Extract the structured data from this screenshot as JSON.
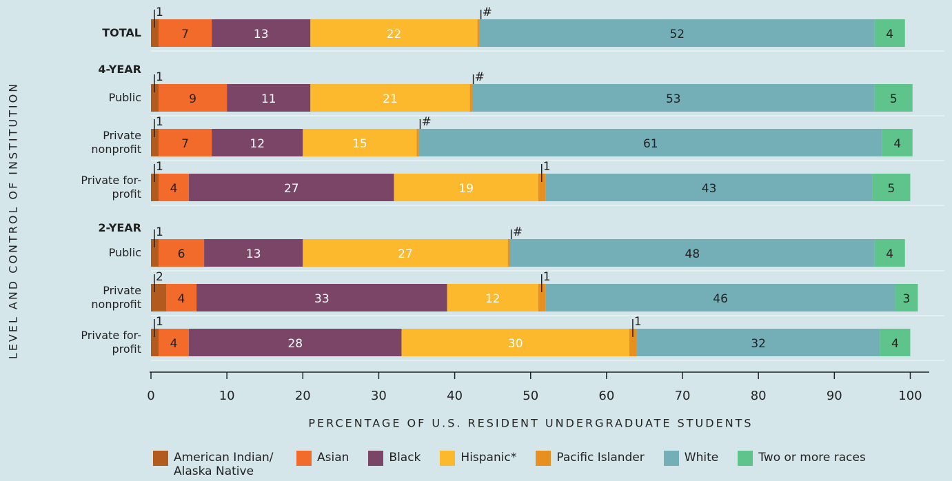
{
  "chart_data": {
    "type": "stacked_bar_horizontal",
    "y_axis_label": "LEVEL AND CONTROL OF INSTITUTION",
    "x_axis_label": "PERCENTAGE OF U.S. RESIDENT UNDERGRADUATE STUDENTS",
    "group_labels": [
      "4-YEAR",
      "2-YEAR"
    ],
    "categories": [
      "TOTAL",
      "Public",
      "Private nonprofit",
      "Private for-profit",
      "Public",
      "Private nonprofit",
      "Private for-profit"
    ],
    "series": [
      {
        "name": "American Indian/ Alaska Native",
        "color": "#b35a1f",
        "values": [
          1,
          1,
          1,
          1,
          1,
          2,
          1
        ]
      },
      {
        "name": "Asian",
        "color": "#f26b2a",
        "values": [
          7,
          9,
          7,
          4,
          6,
          4,
          4
        ]
      },
      {
        "name": "Black",
        "color": "#7a4566",
        "values": [
          13,
          11,
          12,
          27,
          13,
          33,
          28
        ]
      },
      {
        "name": "Hispanic*",
        "color": "#fdb92e",
        "values": [
          22,
          21,
          15,
          19,
          27,
          12,
          30
        ]
      },
      {
        "name": "Pacific Islander",
        "color": "#e8901f",
        "values": [
          0.3,
          0.3,
          0.3,
          1,
          0.3,
          1,
          1
        ],
        "value_labels": [
          "#",
          "#",
          "#",
          "1",
          "#",
          "1",
          "1"
        ]
      },
      {
        "name": "White",
        "color": "#74afb7",
        "values": [
          52,
          53,
          61,
          43,
          48,
          46,
          32
        ]
      },
      {
        "name": "Two or more races",
        "color": "#5ec48c",
        "values": [
          4,
          5,
          4,
          5,
          4,
          3,
          4
        ]
      }
    ],
    "xlim": [
      0,
      102.5
    ],
    "xticks": [
      0,
      10,
      20,
      30,
      40,
      50,
      60,
      70,
      80,
      90,
      100
    ]
  }
}
